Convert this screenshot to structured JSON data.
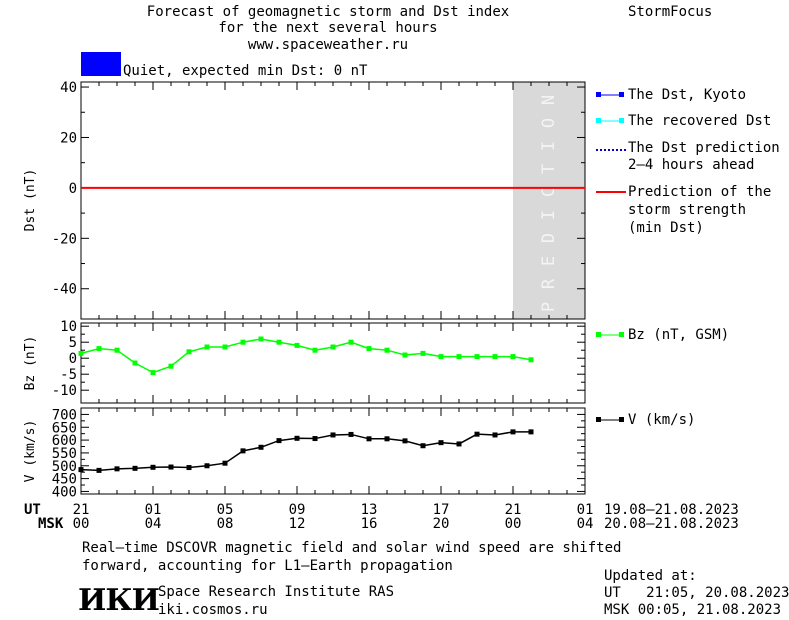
{
  "header": {
    "title_line1": "Forecast of geomagnetic storm and Dst index",
    "title_line2": "for the next several hours",
    "title_line3": "www.spaceweather.ru",
    "brand": "StormFocus"
  },
  "status": {
    "text": "Quiet, expected min Dst: 0 nT",
    "color": "#0000ff"
  },
  "legend": {
    "dst_kyoto": "The Dst, Kyoto",
    "dst_recovered": "The recovered Dst",
    "dst_pred_1": "The Dst prediction",
    "dst_pred_2": "2–4 hours ahead",
    "storm_1": "Prediction of the",
    "storm_2": "storm strength",
    "storm_3": "(min Dst)",
    "bz": "Bz (nT, GSM)",
    "v": "V (km/s)"
  },
  "time_axis": {
    "ut_label": "UT",
    "msk_label": "MSK",
    "ut_ticks": [
      "21",
      "01",
      "05",
      "09",
      "13",
      "17",
      "21",
      "01"
    ],
    "msk_ticks": [
      "00",
      "04",
      "08",
      "12",
      "16",
      "20",
      "00",
      "04"
    ],
    "ut_range": "19.08–21.08.2023",
    "msk_range": "20.08–21.08.2023"
  },
  "footer": {
    "note_line1": "Real–time DSCOVR magnetic field and solar wind speed are shifted",
    "note_line2": "forward, accounting for L1–Earth propagation",
    "logo_text": "ИКИ",
    "institute": "Space Research Institute RAS",
    "site": "iki.cosmos.ru",
    "updated_label": "Updated at:",
    "updated_ut": "UT   21:05, 20.08.2023",
    "updated_msk": "MSK 00:05, 21.08.2023"
  },
  "chart_data": [
    {
      "type": "line",
      "id": "dst",
      "ylabel": "Dst (nT)",
      "ylim": [
        -52,
        42
      ],
      "y_ticks": [
        40,
        20,
        0,
        -20,
        -40
      ],
      "xlim_hours": [
        0,
        28
      ],
      "x_ticks_hours": [
        0,
        4,
        8,
        12,
        16,
        20,
        24,
        28
      ],
      "prediction_band_hours": [
        24,
        28
      ],
      "prediction_text": "PREDICTION",
      "series": [
        {
          "name": "Prediction of the storm strength (min Dst)",
          "color": "#ff0000",
          "constant": 0
        }
      ]
    },
    {
      "type": "line",
      "id": "bz",
      "ylabel": "Bz (nT)",
      "ylim": [
        -14,
        11
      ],
      "y_ticks": [
        10,
        5,
        0,
        -5,
        -10
      ],
      "series": [
        {
          "name": "Bz (nT, GSM)",
          "color": "#00ff00",
          "x": [
            0,
            1,
            2,
            3,
            4,
            5,
            6,
            7,
            8,
            9,
            10,
            11,
            12,
            13,
            14,
            15,
            16,
            17,
            18,
            19,
            20,
            21,
            22,
            23,
            24,
            25
          ],
          "y": [
            1.5,
            3,
            2.5,
            -1.5,
            -4.5,
            -2.5,
            2,
            3.5,
            3.5,
            5,
            6,
            5,
            4,
            2.5,
            3.5,
            5,
            3,
            2.5,
            1,
            1.5,
            0.5,
            0.5,
            0.5,
            0.5,
            0.5,
            -0.5
          ]
        }
      ]
    },
    {
      "type": "line",
      "id": "v",
      "ylabel": "V (km/s)",
      "ylim": [
        390,
        725
      ],
      "y_ticks": [
        700,
        650,
        600,
        550,
        500,
        450,
        400
      ],
      "series": [
        {
          "name": "V (km/s)",
          "color": "#000000",
          "x": [
            0,
            1,
            2,
            3,
            4,
            5,
            6,
            7,
            8,
            9,
            10,
            11,
            12,
            13,
            14,
            15,
            16,
            17,
            18,
            19,
            20,
            21,
            22,
            23,
            24,
            25
          ],
          "y": [
            485,
            482,
            488,
            490,
            494,
            495,
            493,
            500,
            510,
            558,
            572,
            598,
            607,
            606,
            620,
            622,
            605,
            605,
            597,
            578,
            590,
            585,
            623,
            620,
            632,
            632
          ]
        }
      ]
    }
  ]
}
